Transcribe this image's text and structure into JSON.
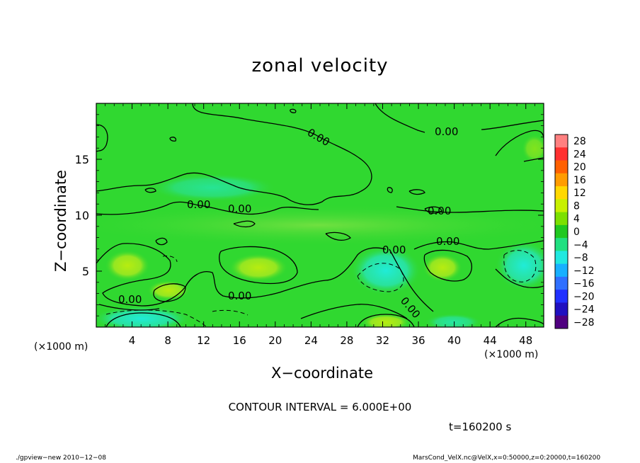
{
  "chart_data": {
    "type": "heatmap",
    "title": "zonal velocity",
    "xlabel": "X−coordinate",
    "ylabel": "Z−coordinate",
    "x_unit_label": "(×1000 m)",
    "y_unit_label": "(×1000 m)",
    "xlim": [
      0,
      50
    ],
    "ylim": [
      0,
      20
    ],
    "x_ticks": [
      "4",
      "8",
      "12",
      "16",
      "20",
      "24",
      "28",
      "32",
      "36",
      "40",
      "44",
      "48"
    ],
    "y_ticks": [
      "5",
      "10",
      "15"
    ],
    "colorbar_levels": [
      "28",
      "24",
      "20",
      "16",
      "12",
      "8",
      "4",
      "0",
      "−4",
      "−8",
      "−12",
      "−16",
      "−20",
      "−24",
      "−28"
    ],
    "colorbar_colors": [
      "#ff8080",
      "#ff3030",
      "#ff6000",
      "#ff9c00",
      "#ffd800",
      "#c8f000",
      "#7ce000",
      "#20c820",
      "#20e080",
      "#20e8e0",
      "#18b0ff",
      "#3070ff",
      "#2030ff",
      "#2010c0",
      "#500080"
    ],
    "contour_labels": [
      "0.00",
      "0.00",
      "0.00",
      "0.00",
      "0.00",
      "0.00",
      "0.00",
      "0.00",
      "0.00",
      "0.00"
    ],
    "contour_interval_text": "CONTOUR INTERVAL = 6.000E+00",
    "time_text": "t=160200 s",
    "colormap_background": "#30d830"
  },
  "footer": {
    "left": "./gpview−new  2010−12−08",
    "right": "MarsCond_VelX.nc@VelX,x=0:50000,z=0:20000,t=160200"
  }
}
